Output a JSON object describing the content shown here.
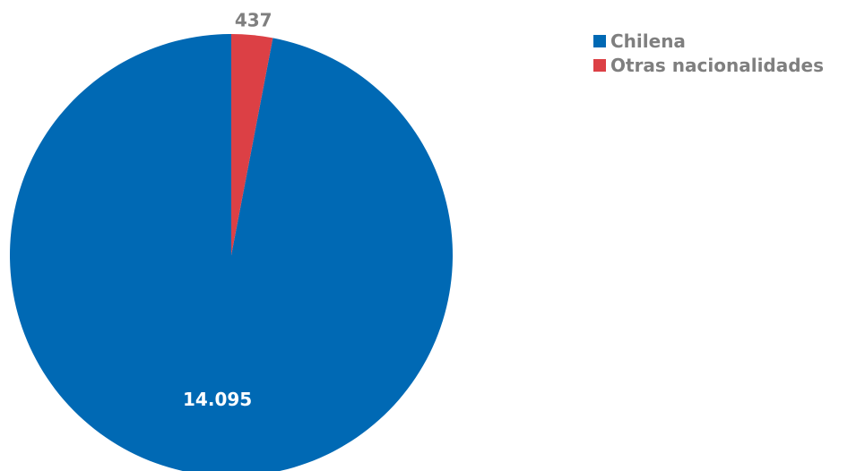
{
  "chart_data": {
    "type": "pie",
    "categories": [
      "Chilena",
      "Otras nacionalidades"
    ],
    "values": [
      14095,
      437
    ],
    "value_labels": [
      "14.095",
      "437"
    ],
    "colors": [
      "#0069b4",
      "#dc4045"
    ],
    "legend_position": "top-right",
    "start_angle": "12 o'clock",
    "direction": "counterclockwise"
  }
}
